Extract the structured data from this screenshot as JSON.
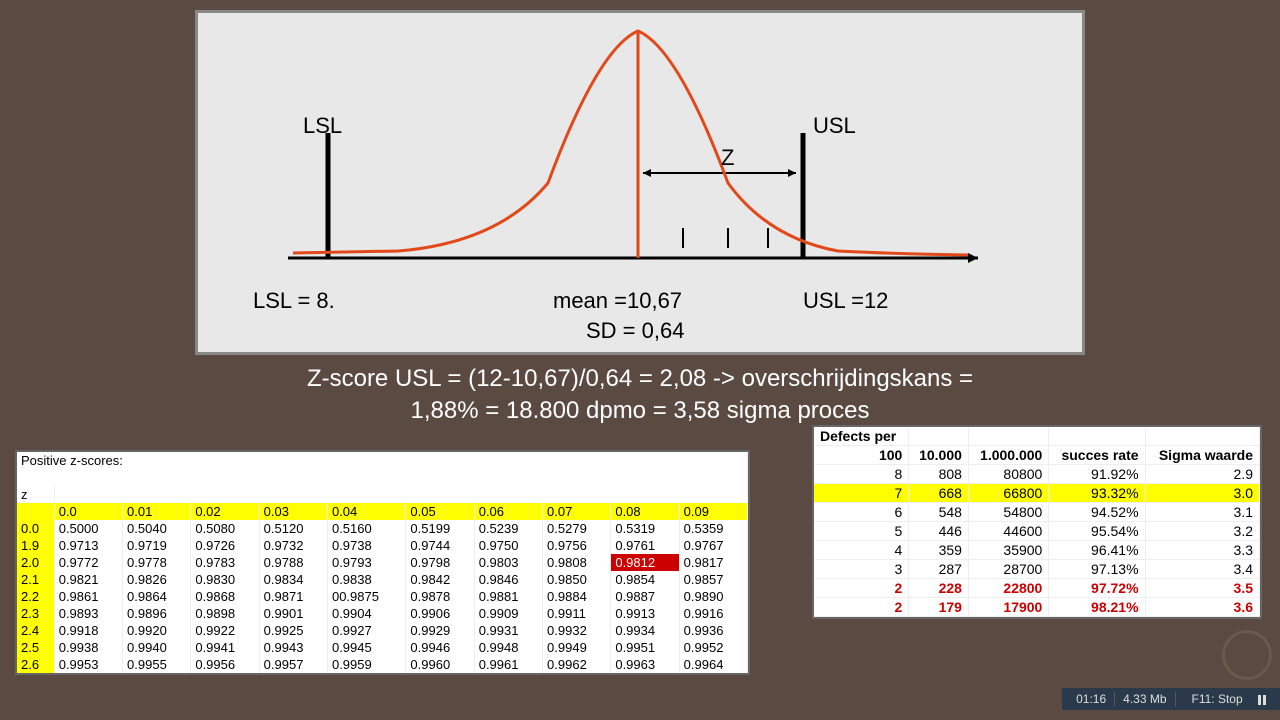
{
  "chart": {
    "background": "#e8e8e8",
    "curve_color": "#e2491a",
    "curve_width": 3,
    "axis_color": "#000000",
    "lsl_label": "LSL",
    "usl_label": "USL",
    "z_label": "Z",
    "lsl_text": "LSL = 8.",
    "mean_text": "mean =10,67",
    "usl_text": "USL =12",
    "sd_text": "SD = 0,64",
    "label_fontsize": 22
  },
  "formula": {
    "line1": "Z-score USL = (12-10,67)/0,64 = 2,08 -> overschrijdingskans =",
    "line2": "1,88% = 18.800 dpmo = 3,58 sigma proces"
  },
  "ztable": {
    "title": "Positive z-scores:",
    "z_label": "z",
    "col_headers": [
      "0.0",
      "0.01",
      "0.02",
      "0.03",
      "0.04",
      "0.05",
      "0.06",
      "0.07",
      "0.08",
      "0.09"
    ],
    "rows": [
      {
        "z": "0.0",
        "v": [
          "0.5000",
          "0.5040",
          "0.5080",
          "0.5120",
          "0.5160",
          "0.5199",
          "0.5239",
          "0.5279",
          "0.5319",
          "0.5359"
        ]
      },
      {
        "z": "1.9",
        "v": [
          "0.9713",
          "0.9719",
          "0.9726",
          "0.9732",
          "0.9738",
          "0.9744",
          "0.9750",
          "0.9756",
          "0.9761",
          "0.9767"
        ]
      },
      {
        "z": "2.0",
        "v": [
          "0.9772",
          "0.9778",
          "0.9783",
          "0.9788",
          "0.9793",
          "0.9798",
          "0.9803",
          "0.9808",
          "0.9812",
          "0.9817"
        ],
        "hl": 8
      },
      {
        "z": "2.1",
        "v": [
          "0.9821",
          "0.9826",
          "0.9830",
          "0.9834",
          "0.9838",
          "0.9842",
          "0.9846",
          "0.9850",
          "0.9854",
          "0.9857"
        ]
      },
      {
        "z": "2.2",
        "v": [
          "0.9861",
          "0.9864",
          "0.9868",
          "0.9871",
          "00.9875",
          "0.9878",
          "0.9881",
          "0.9884",
          "0.9887",
          "0.9890"
        ]
      },
      {
        "z": "2.3",
        "v": [
          "0.9893",
          "0.9896",
          "0.9898",
          "0.9901",
          "0.9904",
          "0.9906",
          "0.9909",
          "0.9911",
          "0.9913",
          "0.9916"
        ]
      },
      {
        "z": "2.4",
        "v": [
          "0.9918",
          "0.9920",
          "0.9922",
          "0.9925",
          "0.9927",
          "0.9929",
          "0.9931",
          "0.9932",
          "0.9934",
          "0.9936"
        ]
      },
      {
        "z": "2.5",
        "v": [
          "0.9938",
          "0.9940",
          "0.9941",
          "0.9943",
          "0.9945",
          "0.9946",
          "0.9948",
          "0.9949",
          "0.9951",
          "0.9952"
        ]
      },
      {
        "z": "2.6",
        "v": [
          "0.9953",
          "0.9955",
          "0.9956",
          "0.9957",
          "0.9959",
          "0.9960",
          "0.9961",
          "0.9962",
          "0.9963",
          "0.9964"
        ]
      }
    ],
    "highlight_bg": "#cc0000",
    "yellow": "#ffff00"
  },
  "defects": {
    "title": "Defects per",
    "headers": [
      "100",
      "10.000",
      "1.000.000",
      "succes rate",
      "Sigma waarde"
    ],
    "rows": [
      {
        "v": [
          "8",
          "808",
          "80800",
          "91.92%",
          "2.9"
        ]
      },
      {
        "v": [
          "7",
          "668",
          "66800",
          "93.32%",
          "3.0"
        ],
        "yellow": true
      },
      {
        "v": [
          "6",
          "548",
          "54800",
          "94.52%",
          "3.1"
        ]
      },
      {
        "v": [
          "5",
          "446",
          "44600",
          "95.54%",
          "3.2"
        ]
      },
      {
        "v": [
          "4",
          "359",
          "35900",
          "96.41%",
          "3.3"
        ]
      },
      {
        "v": [
          "3",
          "287",
          "28700",
          "97.13%",
          "3.4"
        ]
      },
      {
        "v": [
          "2",
          "228",
          "22800",
          "97.72%",
          "3.5"
        ],
        "red": true
      },
      {
        "v": [
          "2",
          "179",
          "17900",
          "98.21%",
          "3.6"
        ],
        "red": true
      }
    ]
  },
  "statusbar": {
    "time": "01:16",
    "size": "4.33 Mb",
    "action": "F11: Stop"
  }
}
